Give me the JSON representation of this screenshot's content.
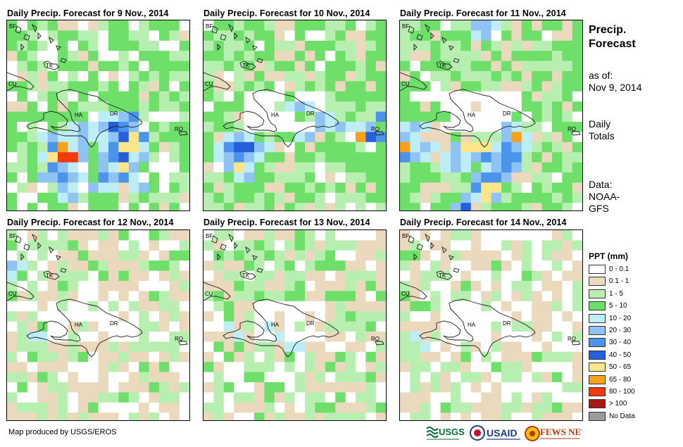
{
  "panels": [
    {
      "title": "Daily Precip. Forecast for 9 Nov., 2014"
    },
    {
      "title": "Daily Precip. Forecast for 10 Nov., 2014"
    },
    {
      "title": "Daily Precip. Forecast for 11 Nov., 2014"
    },
    {
      "title": "Daily Precip. Forecast for 12 Nov., 2014"
    },
    {
      "title": "Daily Precip. Forecast for 13 Nov., 2014"
    },
    {
      "title": "Daily Precip. Forecast for 14 Nov., 2014"
    }
  ],
  "map_labels": {
    "bf": "BF",
    "tk": "TK",
    "cu": "CU",
    "ha": "HA",
    "dr": "DR",
    "rq": "RQ"
  },
  "sidebar": {
    "title_line1": "Precip.",
    "title_line2": "Forecast",
    "asof_line1": "as of:",
    "asof_line2": "Nov 9, 2014",
    "totals_line1": "Daily",
    "totals_line2": "Totals",
    "data_line1": "Data:",
    "data_line2": "NOAA-",
    "data_line3": "GFS"
  },
  "legend": {
    "title": "PPT (mm)",
    "items": [
      {
        "label": "0 - 0.1",
        "color": "#ffffff"
      },
      {
        "label": "0.1 - 1",
        "color": "#ead9bd"
      },
      {
        "label": "1 - 5",
        "color": "#b7efb0"
      },
      {
        "label": "5 - 10",
        "color": "#6ee06a"
      },
      {
        "label": "10 - 20",
        "color": "#bdeef8"
      },
      {
        "label": "20 - 30",
        "color": "#8ec3f4"
      },
      {
        "label": "30 - 40",
        "color": "#4b94ec"
      },
      {
        "label": "40 - 50",
        "color": "#2360da"
      },
      {
        "label": "50 - 65",
        "color": "#fde68a"
      },
      {
        "label": "65 - 80",
        "color": "#f7a21c"
      },
      {
        "label": "80 - 100",
        "color": "#f23a0c"
      },
      {
        "label": "> 100",
        "color": "#a81616"
      },
      {
        "label": "No Data",
        "color": "#9b9b9b"
      }
    ]
  },
  "credit": "Map produced by USGS/EROS",
  "logos": {
    "usgs": "USGS",
    "usaid": "USAID",
    "fewsnet": "FEWS NET"
  }
}
